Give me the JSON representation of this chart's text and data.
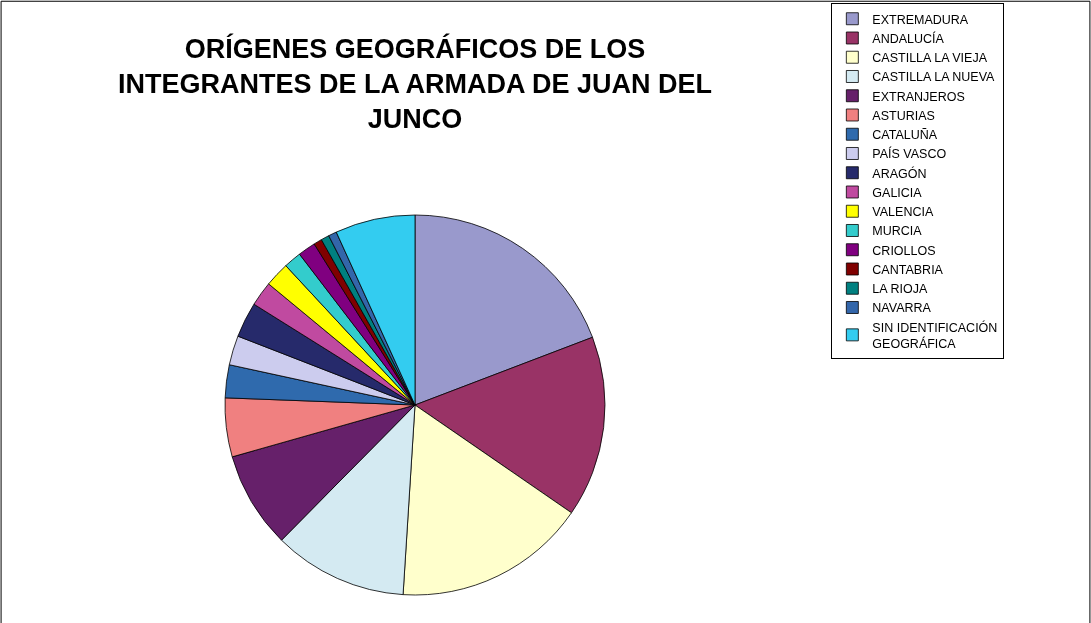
{
  "chart_data": {
    "type": "pie",
    "title": "ORÍGENES GEOGRÁFICOS DE LOS INTEGRANTES DE LA ARMADA DE JUAN DEL JUNCO",
    "categories": [
      "EXTREMADURA",
      "ANDALUCÍA",
      "CASTILLA LA VIEJA",
      "CASTILLA LA NUEVA",
      "EXTRANJEROS",
      "ASTURIAS",
      "CATALUÑA",
      "PAÍS VASCO",
      "ARAGÓN",
      "GALICIA",
      "VALENCIA",
      "MURCIA",
      "CRIOLLOS",
      "CANTABRIA",
      "LA RIOJA",
      "NAVARRA",
      "SIN IDENTIFICACIÓN GEOGRÁFICA"
    ],
    "values": [
      19.2,
      15.4,
      16.4,
      11.4,
      8.2,
      5,
      2.8,
      2.5,
      3,
      2.1,
      2.1,
      1.5,
      1.5,
      0.7,
      0.7,
      0.7,
      6.8
    ],
    "colors": [
      "#9999cc",
      "#993366",
      "#ffffcc",
      "#d4eaf2",
      "#66206a",
      "#f08080",
      "#2f6aad",
      "#ccccee",
      "#262a6b",
      "#c04aa0",
      "#ffff00",
      "#33cccc",
      "#800080",
      "#800000",
      "#008080",
      "#3366aa",
      "#33ccf0"
    ],
    "legend": "right"
  }
}
